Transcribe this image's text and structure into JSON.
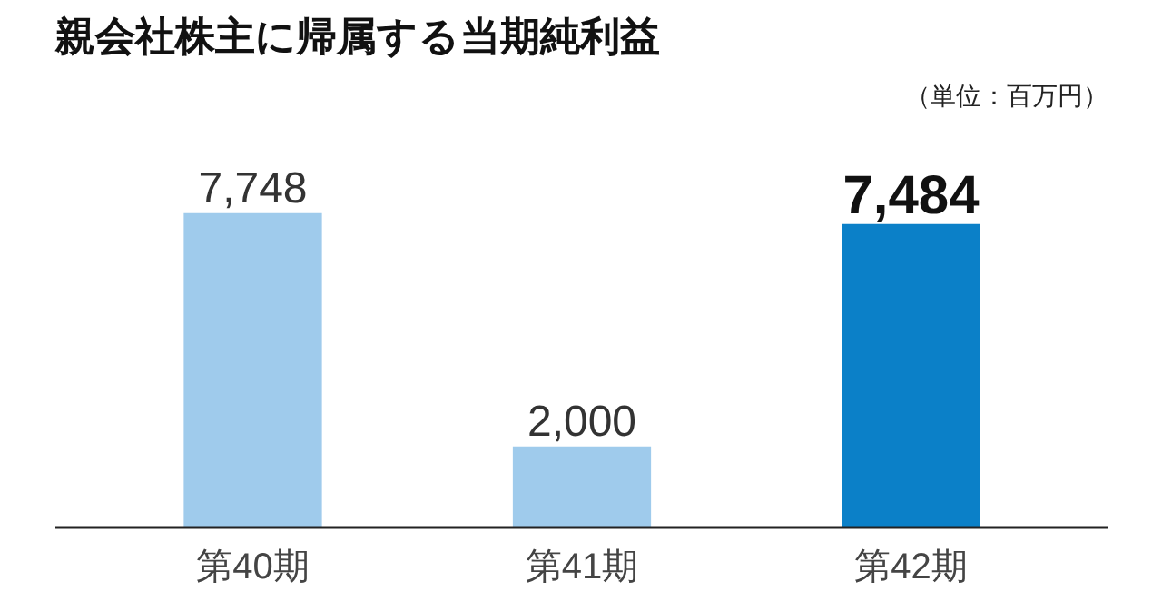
{
  "chart_data": {
    "type": "bar",
    "title": "親会社株主に帰属する当期純利益",
    "subtitle": "（単位：百万円）",
    "categories": [
      "第40期",
      "第41期",
      "第42期"
    ],
    "values": [
      7748,
      2000,
      7484
    ],
    "value_labels": [
      "7,748",
      "2,000",
      "7,484"
    ],
    "colors": [
      "#9fcbec",
      "#9fcbec",
      "#0b80c8"
    ],
    "grid": false
  }
}
